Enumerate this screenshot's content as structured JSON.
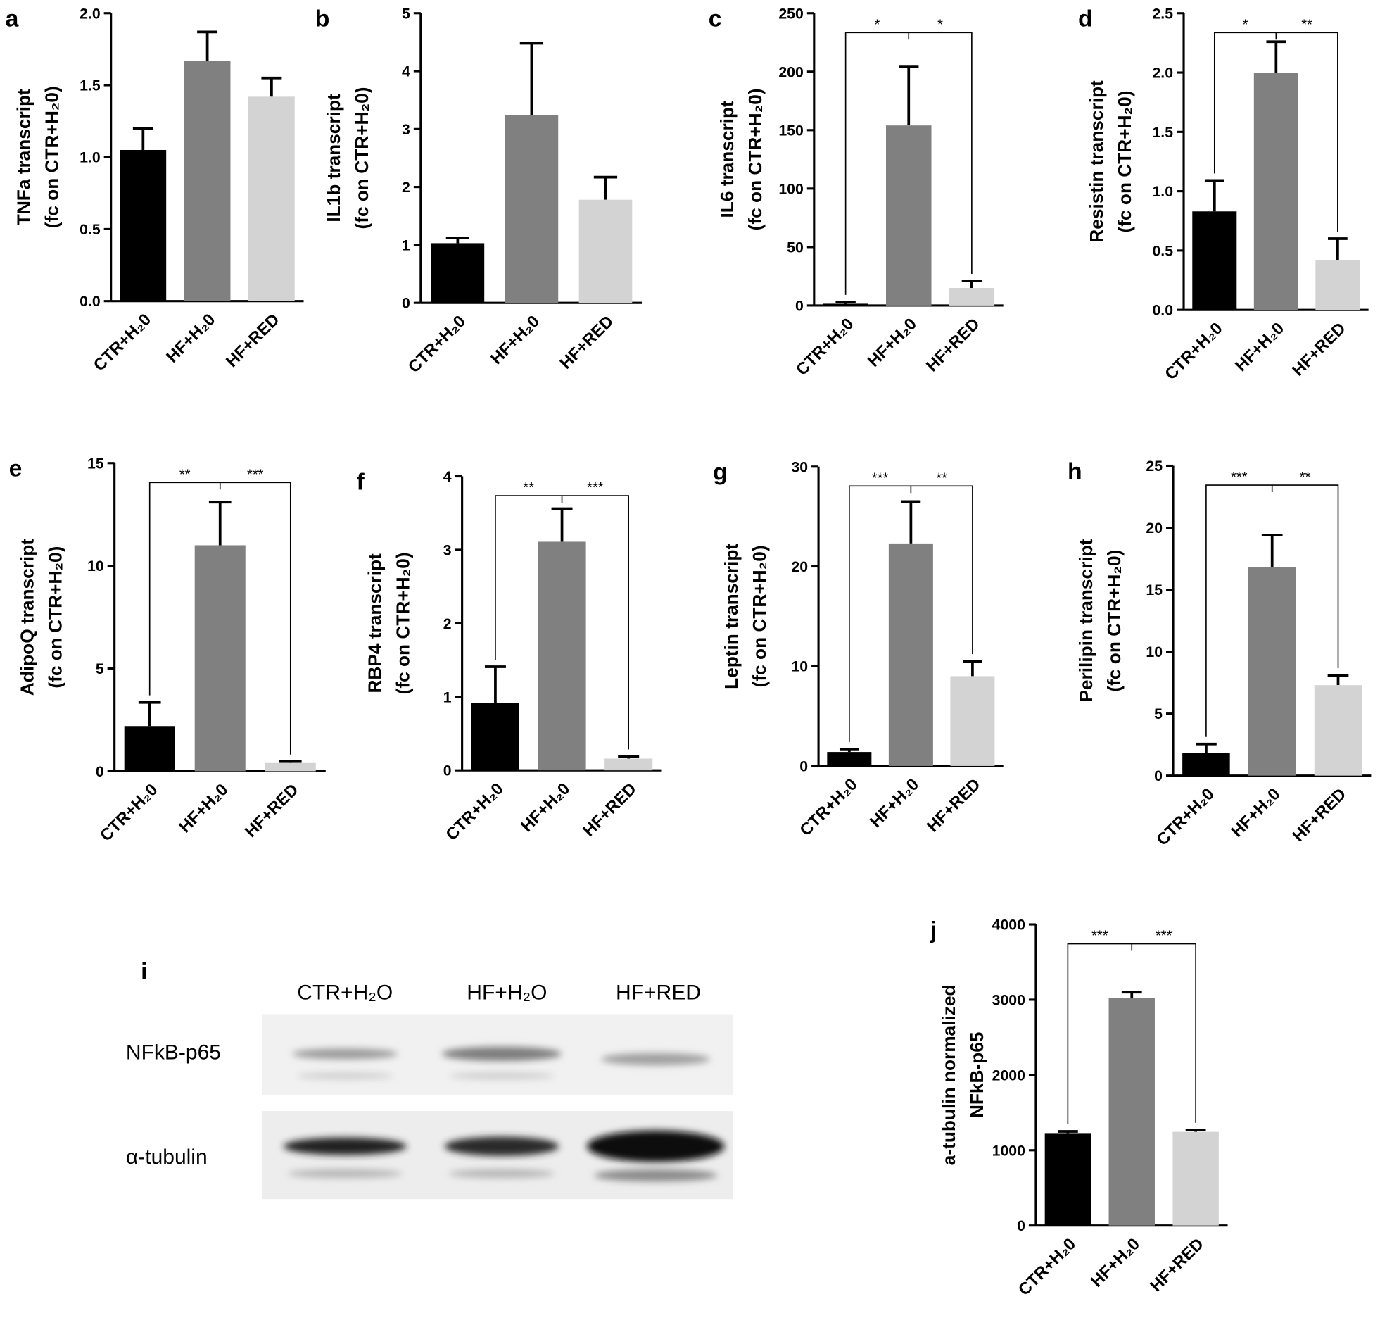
{
  "chart_data": [
    {
      "type": "bar",
      "panel": "a",
      "ylabel": [
        "TNFa transcript",
        "(fc on CTR+H₂0)"
      ],
      "categories": [
        "CTR+H₂0",
        "HF+H₂0",
        "HF+RED"
      ],
      "values": [
        1.05,
        1.67,
        1.42
      ],
      "errors": [
        0.15,
        0.2,
        0.13
      ],
      "colors": [
        "#000000",
        "#808080",
        "#d3d3d3"
      ],
      "ylim": [
        0,
        2
      ],
      "yticks": [
        {
          "value": 0,
          "label": "0.0"
        },
        0.5,
        {
          "value": 1,
          "label": "1.0"
        },
        1.5,
        {
          "value": 2,
          "label": "2.0"
        }
      ],
      "annotations": []
    },
    {
      "type": "bar",
      "panel": "b",
      "ylabel": [
        "IL1b transcript",
        "(fc on CTR+H₂0)"
      ],
      "categories": [
        "CTR+H₂0",
        "HF+H₂0",
        "HF+RED"
      ],
      "values": [
        1.03,
        3.24,
        1.78
      ],
      "errors": [
        0.09,
        1.24,
        0.39
      ],
      "colors": [
        "#000000",
        "#808080",
        "#d3d3d3"
      ],
      "ylim": [
        0,
        5
      ],
      "yticks": [
        0,
        1,
        2,
        3,
        4,
        5
      ],
      "annotations": []
    },
    {
      "type": "bar",
      "panel": "c",
      "ylabel": [
        "IL6 transcript",
        "(fc on CTR+H₂0)"
      ],
      "categories": [
        "CTR+H₂0",
        "HF+H₂0",
        "HF+RED"
      ],
      "values": [
        1.5,
        154,
        15
      ],
      "errors": [
        1.5,
        50,
        6
      ],
      "colors": [
        "#000000",
        "#808080",
        "#d3d3d3"
      ],
      "ylim": [
        0,
        250
      ],
      "yticks": [
        0,
        50,
        100,
        150,
        200,
        250
      ],
      "annotations": [
        "*",
        "*"
      ]
    },
    {
      "type": "bar",
      "panel": "d",
      "ylabel": [
        "Resistin transcript",
        "(fc on CTR+H₂0)"
      ],
      "categories": [
        "CTR+H₂0",
        "HF+H₂0",
        "HF+RED"
      ],
      "values": [
        0.83,
        2.0,
        0.42
      ],
      "errors": [
        0.26,
        0.26,
        0.18
      ],
      "colors": [
        "#000000",
        "#808080",
        "#d3d3d3"
      ],
      "ylim": [
        0,
        2.5
      ],
      "yticks": [
        {
          "value": 0,
          "label": "0.0"
        },
        0.5,
        {
          "value": 1,
          "label": "1.0"
        },
        1.5,
        {
          "value": 2,
          "label": "2.0"
        },
        2.5
      ],
      "annotations": [
        "*",
        "**"
      ]
    },
    {
      "type": "bar",
      "panel": "e",
      "ylabel": [
        "AdipoQ transcript",
        "(fc on CTR+H₂0)"
      ],
      "categories": [
        "CTR+H₂0",
        "HF+H₂0",
        "HF+RED"
      ],
      "values": [
        2.2,
        11.0,
        0.4
      ],
      "errors": [
        1.15,
        2.1,
        0.07
      ],
      "colors": [
        "#000000",
        "#808080",
        "#d3d3d3"
      ],
      "ylim": [
        0,
        15
      ],
      "yticks": [
        0,
        5,
        10,
        15
      ],
      "annotations": [
        "**",
        "***"
      ]
    },
    {
      "type": "bar",
      "panel": "f",
      "ylabel": [
        "RBP4 transcript",
        "(fc on CTR+H₂0)"
      ],
      "categories": [
        "CTR+H₂0",
        "HF+H₂0",
        "HF+RED"
      ],
      "values": [
        0.92,
        3.11,
        0.16
      ],
      "errors": [
        0.49,
        0.45,
        0.03
      ],
      "colors": [
        "#000000",
        "#808080",
        "#d3d3d3"
      ],
      "ylim": [
        0,
        4
      ],
      "yticks": [
        0,
        1,
        2,
        3,
        4
      ],
      "annotations": [
        "**",
        "***"
      ]
    },
    {
      "type": "bar",
      "panel": "g",
      "ylabel": [
        "Leptin transcript",
        "(fc on CTR+H₂0)"
      ],
      "categories": [
        "CTR+H₂0",
        "HF+H₂0",
        "HF+RED"
      ],
      "values": [
        1.4,
        22.3,
        9.0
      ],
      "errors": [
        0.3,
        4.2,
        1.5
      ],
      "colors": [
        "#000000",
        "#808080",
        "#d3d3d3"
      ],
      "ylim": [
        0,
        30
      ],
      "yticks": [
        0,
        10,
        20,
        30
      ],
      "annotations": [
        "***",
        "**"
      ]
    },
    {
      "type": "bar",
      "panel": "h",
      "ylabel": [
        "Perilipin transcript",
        "(fc on CTR+H₂0)"
      ],
      "categories": [
        "CTR+H₂0",
        "HF+H₂0",
        "HF+RED"
      ],
      "values": [
        1.85,
        16.8,
        7.3
      ],
      "errors": [
        0.7,
        2.6,
        0.8
      ],
      "colors": [
        "#000000",
        "#808080",
        "#d3d3d3"
      ],
      "ylim": [
        0,
        25
      ],
      "yticks": [
        0,
        5,
        10,
        15,
        20,
        25
      ],
      "annotations": [
        "***",
        "**"
      ]
    },
    {
      "type": "bar",
      "panel": "j",
      "ylabel": [
        "a-tubulin normalized",
        "NFkB-p65"
      ],
      "categories": [
        "CTR+H₂0",
        "HF+H₂0",
        "HF+RED"
      ],
      "values": [
        1228,
        3020,
        1245
      ],
      "errors": [
        22,
        80,
        25
      ],
      "colors": [
        "#000000",
        "#808080",
        "#d3d3d3"
      ],
      "ylim": [
        0,
        4000
      ],
      "yticks": [
        0,
        1000,
        2000,
        3000,
        4000
      ],
      "annotations": [
        "***",
        "***"
      ]
    }
  ],
  "blot": {
    "panel": "i",
    "lanes": [
      "CTR+H₂O",
      "HF+H₂O",
      "HF+RED"
    ],
    "rows": [
      "NFkB-p65",
      "α-tubulin"
    ]
  }
}
